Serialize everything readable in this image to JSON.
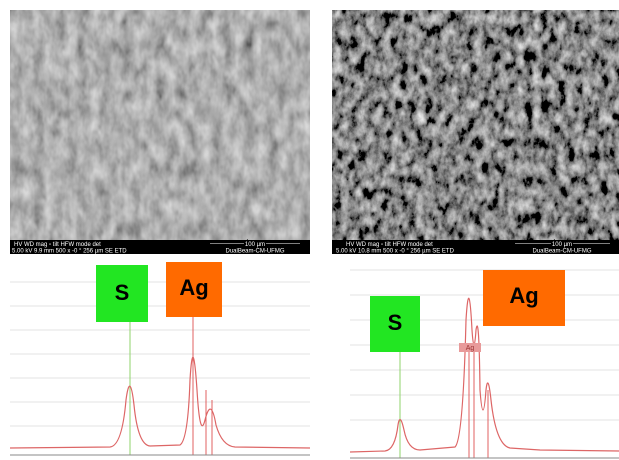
{
  "panels": [
    {
      "sem": {
        "row1": "HV     WD     mag ▫   tilt   HFW   mode  det",
        "row2": "5.00 kV 9.9 mm  500 x  -0 °  256 µm  SE  ETD",
        "scale": "100 µm",
        "lab": "DualBeam-CM-UFMG"
      },
      "spectrum": {
        "labels": [
          "S",
          "Ag"
        ]
      }
    },
    {
      "sem": {
        "row1": "HV     WD     mag ▫   tilt   HFW   mode  det",
        "row2": "5.00 kV 10.8 mm  500 x  -0 °  256 µm  SE  ETD",
        "scale": "100 µm",
        "lab": "DualBeam-CM-UFMG"
      },
      "spectrum": {
        "labels": [
          "S",
          "Ag"
        ],
        "peak_tag": "Ag"
      }
    }
  ]
}
